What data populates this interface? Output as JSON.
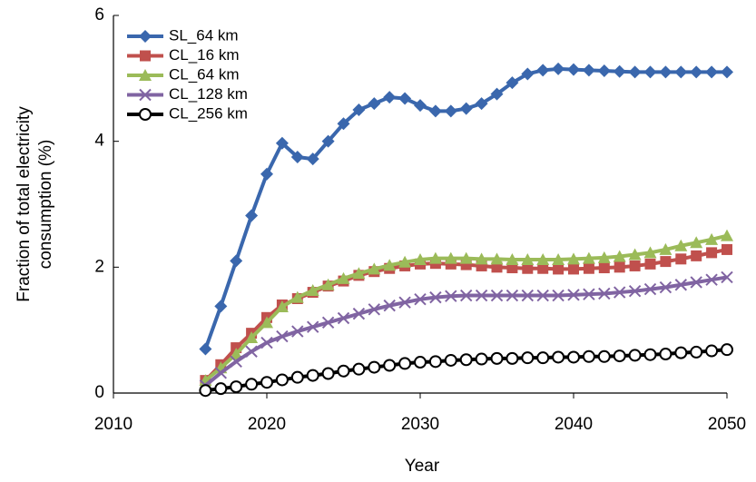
{
  "chart_data": {
    "type": "line",
    "xlabel": "Year",
    "ylabel": [
      "Fraction of total electricity",
      "consumption (%)"
    ],
    "x": [
      2016,
      2017,
      2018,
      2019,
      2020,
      2021,
      2022,
      2023,
      2024,
      2025,
      2026,
      2027,
      2028,
      2029,
      2030,
      2031,
      2032,
      2033,
      2034,
      2035,
      2036,
      2037,
      2038,
      2039,
      2040,
      2041,
      2042,
      2043,
      2044,
      2045,
      2046,
      2047,
      2048,
      2049,
      2050
    ],
    "xlim": [
      2010,
      2050
    ],
    "xticks": [
      2010,
      2020,
      2030,
      2040,
      2050
    ],
    "ylim": [
      0,
      6
    ],
    "yticks": [
      0,
      2,
      4,
      6
    ],
    "grid": false,
    "legend": "upper-left",
    "series": [
      {
        "name": "SL_64 km",
        "color": "#3a67ad",
        "marker": "diamond",
        "values": [
          0.7,
          1.38,
          2.1,
          2.82,
          3.48,
          3.97,
          3.75,
          3.72,
          4.0,
          4.28,
          4.5,
          4.6,
          4.7,
          4.68,
          4.57,
          4.48,
          4.48,
          4.52,
          4.6,
          4.75,
          4.93,
          5.07,
          5.13,
          5.15,
          5.14,
          5.13,
          5.12,
          5.11,
          5.1,
          5.1,
          5.1,
          5.1,
          5.1,
          5.1,
          5.1
        ]
      },
      {
        "name": "CL_16 km",
        "color": "#c0504d",
        "marker": "square",
        "values": [
          0.2,
          0.45,
          0.72,
          0.95,
          1.2,
          1.4,
          1.5,
          1.6,
          1.7,
          1.78,
          1.87,
          1.93,
          1.98,
          2.02,
          2.05,
          2.06,
          2.05,
          2.04,
          2.02,
          2.0,
          1.99,
          1.98,
          1.98,
          1.97,
          1.97,
          1.98,
          1.99,
          2.0,
          2.02,
          2.05,
          2.09,
          2.13,
          2.18,
          2.23,
          2.28
        ]
      },
      {
        "name": "CL_64 km",
        "color": "#9bbb59",
        "marker": "triangle",
        "values": [
          0.2,
          0.4,
          0.62,
          0.88,
          1.12,
          1.37,
          1.52,
          1.63,
          1.72,
          1.82,
          1.9,
          1.97,
          2.03,
          2.08,
          2.12,
          2.14,
          2.14,
          2.14,
          2.13,
          2.13,
          2.12,
          2.12,
          2.12,
          2.12,
          2.13,
          2.14,
          2.15,
          2.17,
          2.2,
          2.23,
          2.28,
          2.34,
          2.39,
          2.44,
          2.5
        ]
      },
      {
        "name": "CL_128 km",
        "color": "#8064a2",
        "marker": "x",
        "values": [
          0.12,
          0.32,
          0.5,
          0.66,
          0.8,
          0.9,
          0.98,
          1.05,
          1.12,
          1.19,
          1.26,
          1.33,
          1.39,
          1.44,
          1.49,
          1.52,
          1.54,
          1.55,
          1.55,
          1.55,
          1.55,
          1.55,
          1.55,
          1.55,
          1.56,
          1.57,
          1.58,
          1.6,
          1.62,
          1.65,
          1.68,
          1.72,
          1.76,
          1.8,
          1.84
        ]
      },
      {
        "name": "CL_256 km",
        "color": "#000000",
        "marker": "circle",
        "values": [
          0.04,
          0.07,
          0.1,
          0.14,
          0.17,
          0.21,
          0.25,
          0.28,
          0.31,
          0.35,
          0.38,
          0.41,
          0.44,
          0.47,
          0.49,
          0.5,
          0.52,
          0.53,
          0.54,
          0.55,
          0.55,
          0.56,
          0.56,
          0.57,
          0.57,
          0.58,
          0.58,
          0.59,
          0.6,
          0.61,
          0.62,
          0.64,
          0.65,
          0.67,
          0.69
        ]
      }
    ]
  }
}
